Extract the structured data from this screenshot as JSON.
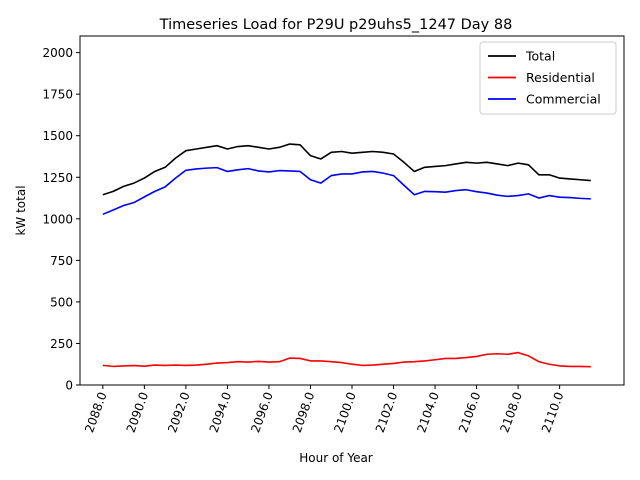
{
  "chart_data": {
    "type": "line",
    "title": "Timeseries Load for P29U p29uhs5_1247  Day 88",
    "xlabel": "Hour of Year",
    "ylabel": "kW total",
    "xlim": [
      2086.9,
      2113.1
    ],
    "ylim": [
      0,
      2100
    ],
    "xticks": [
      2088,
      2090,
      2092,
      2094,
      2096,
      2098,
      2100,
      2102,
      2104,
      2106,
      2108,
      2110
    ],
    "xtick_labels": [
      "2088.0",
      "2090.0",
      "2092.0",
      "2094.0",
      "2096.0",
      "2098.0",
      "2100.0",
      "2102.0",
      "2104.0",
      "2106.0",
      "2108.0",
      "2110.0"
    ],
    "yticks": [
      0,
      250,
      500,
      750,
      1000,
      1250,
      1500,
      1750,
      2000
    ],
    "ytick_labels": [
      "0",
      "250",
      "500",
      "750",
      "1000",
      "1250",
      "1500",
      "1750",
      "2000"
    ],
    "legend_position": "upper-right",
    "x": [
      2088.0,
      2088.5,
      2089.0,
      2089.5,
      2090.0,
      2090.5,
      2091.0,
      2091.5,
      2092.0,
      2092.5,
      2093.0,
      2093.5,
      2094.0,
      2094.5,
      2095.0,
      2095.5,
      2096.0,
      2096.5,
      2097.0,
      2097.5,
      2098.0,
      2098.5,
      2099.0,
      2099.5,
      2100.0,
      2100.5,
      2101.0,
      2101.5,
      2102.0,
      2102.5,
      2103.0,
      2103.5,
      2104.0,
      2104.5,
      2105.0,
      2105.5,
      2106.0,
      2106.5,
      2107.0,
      2107.5,
      2108.0,
      2108.5,
      2109.0,
      2109.5,
      2110.0,
      2110.5,
      2111.0,
      2111.5
    ],
    "series": [
      {
        "name": "Total",
        "color": "#000000",
        "values": [
          1145,
          1165,
          1195,
          1215,
          1245,
          1285,
          1310,
          1365,
          1410,
          1420,
          1430,
          1440,
          1420,
          1435,
          1440,
          1430,
          1420,
          1430,
          1450,
          1445,
          1380,
          1360,
          1400,
          1405,
          1395,
          1400,
          1405,
          1400,
          1390,
          1340,
          1285,
          1310,
          1315,
          1320,
          1330,
          1340,
          1335,
          1340,
          1330,
          1320,
          1335,
          1325,
          1265,
          1265,
          1245,
          1240,
          1235,
          1230
        ]
      },
      {
        "name": "Residential",
        "color": "#ff0000",
        "values": [
          118,
          112,
          115,
          117,
          113,
          120,
          118,
          120,
          118,
          120,
          125,
          132,
          135,
          140,
          138,
          142,
          138,
          140,
          162,
          160,
          145,
          145,
          140,
          135,
          125,
          118,
          120,
          125,
          130,
          138,
          140,
          145,
          152,
          160,
          160,
          165,
          172,
          185,
          188,
          185,
          195,
          175,
          140,
          125,
          115,
          112,
          112,
          110
        ]
      },
      {
        "name": "Commercial",
        "color": "#0000ff",
        "values": [
          1027,
          1053,
          1080,
          1098,
          1132,
          1165,
          1192,
          1245,
          1292,
          1300,
          1305,
          1308,
          1285,
          1295,
          1302,
          1288,
          1282,
          1290,
          1288,
          1285,
          1235,
          1215,
          1260,
          1270,
          1270,
          1282,
          1285,
          1275,
          1260,
          1202,
          1145,
          1165,
          1163,
          1160,
          1170,
          1175,
          1163,
          1155,
          1142,
          1135,
          1140,
          1150,
          1125,
          1140,
          1130,
          1128,
          1123,
          1120
        ]
      }
    ]
  }
}
